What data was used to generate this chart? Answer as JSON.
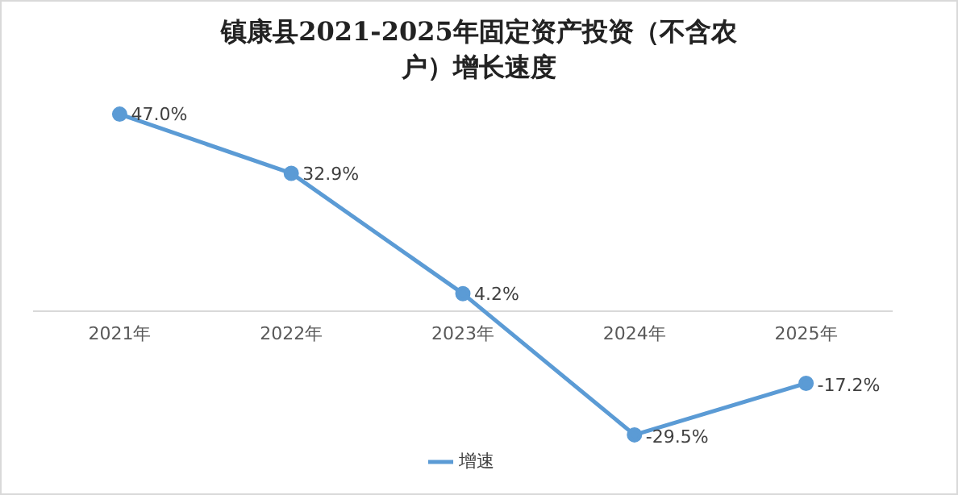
{
  "chart_data": {
    "type": "line",
    "title": "镇康县2021-2025年固定资产投资（不含农户）增长速度",
    "categories": [
      "2021年",
      "2022年",
      "2023年",
      "2024年",
      "2025年"
    ],
    "series": [
      {
        "name": "增速",
        "color": "#5b9bd5",
        "values": [
          47.0,
          32.9,
          4.2,
          -29.5,
          -17.2
        ],
        "value_labels": [
          "47.0%",
          "32.9%",
          "4.2%",
          "-29.5%",
          "-17.2%"
        ]
      }
    ],
    "marker": "circle",
    "legend": "bottom",
    "grid": false
  }
}
